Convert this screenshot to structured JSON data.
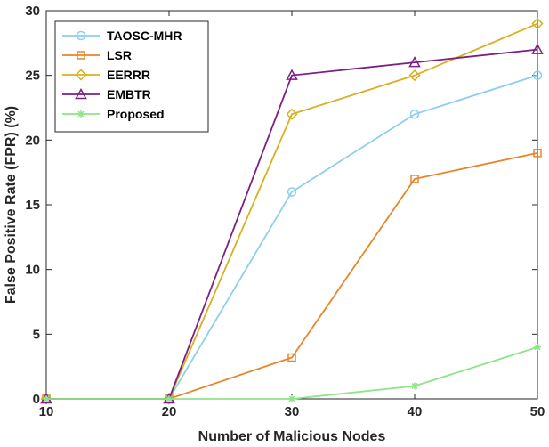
{
  "chart_data": {
    "type": "line",
    "title": "",
    "xlabel": "Number of Malicious Nodes",
    "ylabel": "False Positive Rate (FPR) (%)",
    "x": [
      10,
      20,
      30,
      40,
      50
    ],
    "xlim": [
      10,
      50
    ],
    "ylim": [
      0,
      30
    ],
    "xticks": [
      10,
      20,
      30,
      40,
      50
    ],
    "yticks": [
      0,
      5,
      10,
      15,
      20,
      25,
      30
    ],
    "grid": false,
    "legend_position": "top-left",
    "series": [
      {
        "name": "TAOSC-MHR",
        "color": "#8ccfee",
        "marker": "circle",
        "values": [
          0,
          0,
          16,
          22,
          25
        ]
      },
      {
        "name": "LSR",
        "color": "#e8852a",
        "marker": "square",
        "values": [
          0,
          0,
          3.2,
          17,
          19
        ]
      },
      {
        "name": "EERRR",
        "color": "#d8b020",
        "marker": "diamond",
        "values": [
          0,
          0,
          22,
          25,
          29
        ]
      },
      {
        "name": "EMBTR",
        "color": "#7c1f85",
        "marker": "triangle",
        "values": [
          0,
          0,
          25,
          26,
          27
        ]
      },
      {
        "name": "Proposed",
        "color": "#8ee48a",
        "marker": "asterisk",
        "values": [
          0,
          0,
          0,
          1,
          4
        ]
      }
    ]
  }
}
